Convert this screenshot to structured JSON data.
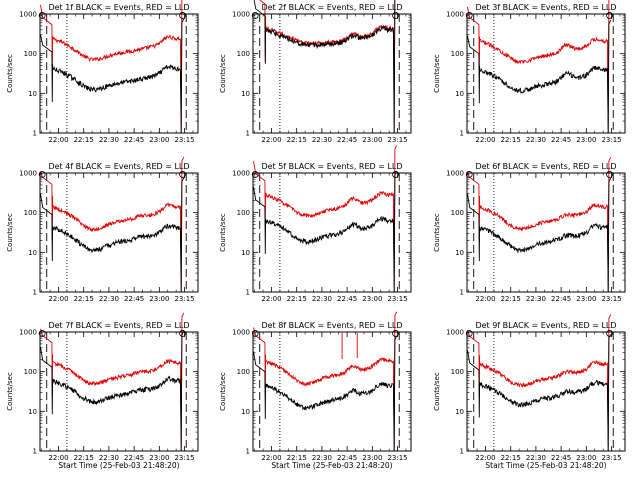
{
  "chart_data": {
    "type": "line",
    "scale": "log",
    "ylim": [
      1,
      1000
    ],
    "xlim": [
      "21:49",
      "23:23"
    ],
    "xticks": [
      "22:00",
      "22:15",
      "22:30",
      "22:45",
      "23:00",
      "23:15"
    ],
    "yticks": [
      "1",
      "10",
      "100",
      "1000"
    ],
    "ylabel": "Counts/sec",
    "xlabel": "Start Time (25-Feb-03 21:48:20)",
    "background": "#ffffff",
    "colors": {
      "events": "#000000",
      "lld": "#e00000"
    },
    "panels": [
      {
        "title": "Det 1f BLACK = Events, RED = LLD",
        "show_xlabel": false,
        "show_ylabel": true,
        "events_level": 30,
        "lld_level": 170,
        "events_start": 55,
        "lld_start": 270,
        "dip": 0.55,
        "bump": 1.0,
        "spike": false
      },
      {
        "title": "Det 2f BLACK = Events, RED = LLD",
        "show_xlabel": false,
        "show_ylabel": true,
        "events_level": 280,
        "lld_level": 310,
        "events_start": 450,
        "lld_start": 900,
        "dip": 0.8,
        "bump": 1.35,
        "spike": false
      },
      {
        "title": "Det 3f BLACK = Events, RED = LLD",
        "show_xlabel": false,
        "show_ylabel": true,
        "events_level": 28,
        "lld_level": 150,
        "events_start": 50,
        "lld_start": 270,
        "dip": 0.55,
        "bump": 1.5,
        "spike": false
      },
      {
        "title": "Det 4f BLACK = Events, RED = LLD",
        "show_xlabel": false,
        "show_ylabel": true,
        "events_level": 30,
        "lld_level": 100,
        "events_start": 45,
        "lld_start": 260,
        "dip": 0.5,
        "bump": 1.1,
        "spike": false
      },
      {
        "title": "Det 5f BLACK = Events, RED = LLD",
        "show_xlabel": false,
        "show_ylabel": true,
        "events_level": 45,
        "lld_level": 200,
        "events_start": 70,
        "lld_start": 320,
        "dip": 0.55,
        "bump": 1.5,
        "spike": false
      },
      {
        "title": "Det 6f BLACK = Events, RED = LLD",
        "show_xlabel": false,
        "show_ylabel": true,
        "events_level": 30,
        "lld_level": 100,
        "events_start": 45,
        "lld_start": 260,
        "dip": 0.5,
        "bump": 1.2,
        "spike": false
      },
      {
        "title": "Det 7f BLACK = Events, RED = LLD",
        "show_xlabel": true,
        "show_ylabel": true,
        "events_level": 42,
        "lld_level": 120,
        "events_start": 65,
        "lld_start": 270,
        "dip": 0.55,
        "bump": 1.1,
        "spike": false
      },
      {
        "title": "Det 8f BLACK = Events, RED = LLD",
        "show_xlabel": true,
        "show_ylabel": true,
        "events_level": 32,
        "lld_level": 130,
        "events_start": 50,
        "lld_start": 270,
        "dip": 0.5,
        "bump": 1.4,
        "spike": true
      },
      {
        "title": "Det 9f BLACK = Events, RED = LLD",
        "show_xlabel": true,
        "show_ylabel": true,
        "events_level": 35,
        "lld_level": 110,
        "events_start": 55,
        "lld_start": 260,
        "dip": 0.55,
        "bump": 1.2,
        "spike": false
      }
    ]
  }
}
